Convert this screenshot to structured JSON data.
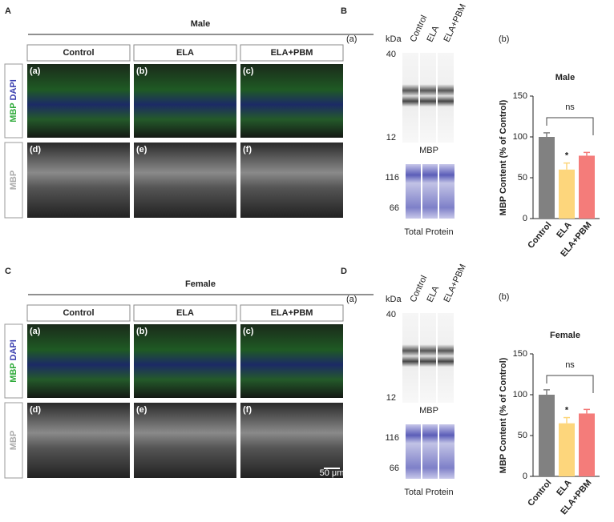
{
  "panels": [
    {
      "letter": "A",
      "title": "Male",
      "columns": [
        "Control",
        "ELA",
        "ELA+PBM"
      ],
      "merged_label": [
        "MBP",
        "DAPI"
      ],
      "binary_label": "MBP",
      "subpanels": [
        "(a)",
        "(b)",
        "(c)",
        "(d)",
        "(e)",
        "(f)"
      ]
    },
    {
      "letter": "C",
      "title": "Female",
      "columns": [
        "Control",
        "ELA",
        "ELA+PBM"
      ],
      "merged_label": [
        "MBP",
        "DAPI"
      ],
      "binary_label": "MBP",
      "subpanels": [
        "(a)",
        "(b)",
        "(c)",
        "(d)",
        "(e)",
        "(f)"
      ],
      "scale_bar": "50 μm"
    }
  ],
  "blots": [
    {
      "letter": "B",
      "label": "(a)",
      "unit": "kDa",
      "lanes": [
        "Control",
        "ELA",
        "ELA+PBM"
      ],
      "mbp_markers": [
        "40",
        "12"
      ],
      "mbp_label": "MBP",
      "tp_markers": [
        "116",
        "66"
      ],
      "tp_label": "Total Protein"
    },
    {
      "letter": "D",
      "label": "(a)",
      "unit": "kDa",
      "lanes": [
        "Control",
        "ELA",
        "ELA+PBM"
      ],
      "mbp_markers": [
        "40",
        "12"
      ],
      "mbp_label": "MBP",
      "tp_markers": [
        "116",
        "66"
      ],
      "tp_label": "Total Protein"
    }
  ],
  "chart_data": [
    {
      "type": "bar",
      "panel_label": "(b)",
      "title": "Male",
      "y_label": "MBP Content (% of Control)",
      "categories": [
        "Control",
        "ELA",
        "ELA+PBM"
      ],
      "values": [
        100,
        60,
        77
      ],
      "errors": [
        5,
        8,
        4
      ],
      "colors": [
        "#818181",
        "#fdd67c",
        "#f47c7a"
      ],
      "ylim": [
        0,
        150
      ],
      "yticks": [
        0,
        50,
        100,
        150
      ],
      "annotations": [
        "*",
        "ns"
      ]
    },
    {
      "type": "bar",
      "panel_label": "(b)",
      "title": "Female",
      "y_label": "MBP Content (% of Control)",
      "categories": [
        "Control",
        "ELA",
        "ELA+PBM"
      ],
      "values": [
        100,
        65,
        77
      ],
      "errors": [
        6,
        7,
        5
      ],
      "colors": [
        "#818181",
        "#fdd67c",
        "#f47c7a"
      ],
      "ylim": [
        0,
        150
      ],
      "yticks": [
        0,
        50,
        100,
        150
      ],
      "annotations": [
        "*",
        "ns"
      ]
    }
  ]
}
